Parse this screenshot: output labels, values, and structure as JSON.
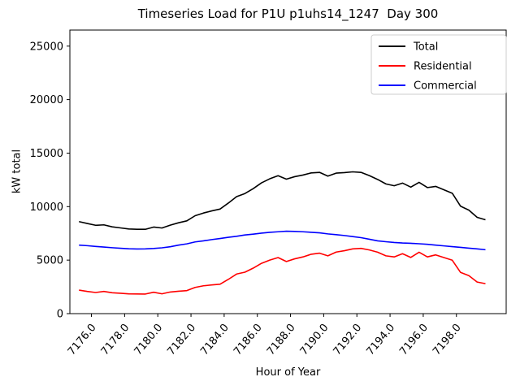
{
  "title": "Timeseries Load for P1U p1uhs14_1247  Day 300",
  "chart_data": {
    "type": "line",
    "title": "Timeseries Load for P1U p1uhs14_1247  Day 300",
    "xlabel": "Hour of Year",
    "ylabel": "kW total",
    "xlim": [
      7174.7,
      7201.0
    ],
    "ylim": [
      0,
      26500
    ],
    "xticks": [
      7176.0,
      7178.0,
      7180.0,
      7182.0,
      7184.0,
      7186.0,
      7188.0,
      7190.0,
      7192.0,
      7194.0,
      7196.0,
      7198.0
    ],
    "yticks": [
      0,
      5000,
      10000,
      15000,
      20000,
      25000
    ],
    "xtick_rotation_deg": 50,
    "grid": false,
    "legend_position": "upper right",
    "background_color": "#ffffff",
    "x": [
      7175.25,
      7175.75,
      7176.25,
      7176.75,
      7177.25,
      7177.75,
      7178.25,
      7178.75,
      7179.25,
      7179.75,
      7180.25,
      7180.75,
      7181.25,
      7181.75,
      7182.25,
      7182.75,
      7183.25,
      7183.75,
      7184.25,
      7184.75,
      7185.25,
      7185.75,
      7186.25,
      7186.75,
      7187.25,
      7187.75,
      7188.25,
      7188.75,
      7189.25,
      7189.75,
      7190.25,
      7190.75,
      7191.25,
      7191.75,
      7192.25,
      7192.75,
      7193.25,
      7193.75,
      7194.25,
      7194.75,
      7195.25,
      7195.75,
      7196.25,
      7196.75,
      7197.25,
      7197.75,
      7198.25,
      7198.75,
      7199.25,
      7199.75
    ],
    "series": [
      {
        "name": "Total",
        "color": "#000000",
        "values": [
          8600,
          8425,
          8255,
          8295,
          8110,
          8010,
          7910,
          7880,
          7880,
          8090,
          8000,
          8270,
          8490,
          8670,
          9150,
          9400,
          9600,
          9770,
          10330,
          10930,
          11220,
          11680,
          12220,
          12600,
          12890,
          12570,
          12800,
          12950,
          13150,
          13200,
          12850,
          13130,
          13180,
          13250,
          13200,
          12900,
          12540,
          12120,
          11950,
          12200,
          11820,
          12270,
          11780,
          11890,
          11570,
          11250,
          10040,
          9670,
          9000,
          8770
        ]
      },
      {
        "name": "Residential",
        "color": "#ff0000",
        "values": [
          2200,
          2075,
          1975,
          2075,
          1950,
          1900,
          1850,
          1840,
          1830,
          2000,
          1850,
          2020,
          2090,
          2150,
          2450,
          2600,
          2680,
          2750,
          3200,
          3700,
          3870,
          4250,
          4700,
          5000,
          5240,
          4870,
          5120,
          5300,
          5550,
          5650,
          5400,
          5750,
          5880,
          6050,
          6100,
          5950,
          5740,
          5400,
          5300,
          5600,
          5250,
          5740,
          5300,
          5490,
          5240,
          4990,
          3850,
          3550,
          2950,
          2800
        ]
      },
      {
        "name": "Commercial",
        "color": "#0000ff",
        "values": [
          6400,
          6350,
          6280,
          6220,
          6160,
          6110,
          6060,
          6040,
          6050,
          6090,
          6150,
          6250,
          6400,
          6520,
          6700,
          6800,
          6920,
          7020,
          7130,
          7230,
          7350,
          7430,
          7520,
          7600,
          7650,
          7700,
          7680,
          7650,
          7600,
          7550,
          7450,
          7380,
          7300,
          7200,
          7100,
          6950,
          6800,
          6720,
          6650,
          6600,
          6570,
          6530,
          6480,
          6400,
          6330,
          6260,
          6190,
          6120,
          6050,
          5970
        ]
      }
    ],
    "legend": {
      "labels": [
        "Total",
        "Residential",
        "Commercial"
      ],
      "border_color": "#cccccc"
    }
  }
}
